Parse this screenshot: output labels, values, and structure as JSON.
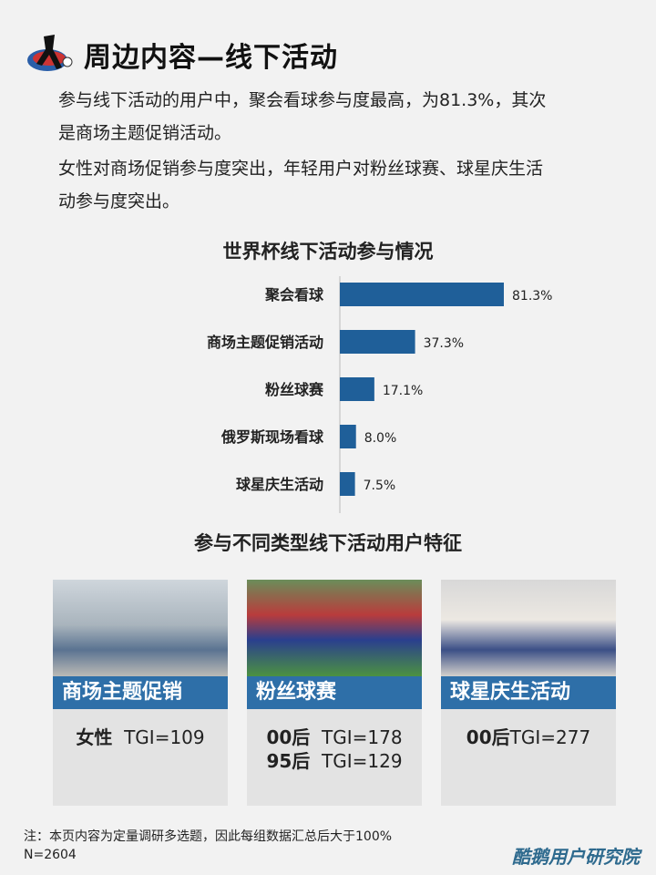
{
  "header": {
    "title": "周边内容—线下活动",
    "icon": "soccer-player-logo-icon"
  },
  "summary": [
    "参与线下活动的用户中，聚会看球参与度最高，为81.3%，其次",
    "是商场主题促销活动。",
    "女性对商场促销参与度突出，年轻用户对粉丝球赛、球星庆生活",
    "动参与度突出。"
  ],
  "chart_data": {
    "type": "bar",
    "orientation": "horizontal",
    "title": "世界杯线下活动参与情况",
    "categories": [
      "聚会看球",
      "商场主题促销活动",
      "粉丝球赛",
      "俄罗斯现场看球",
      "球星庆生活动"
    ],
    "values": [
      81.3,
      37.3,
      17.1,
      8.0,
      7.5
    ],
    "labels": [
      "81.3%",
      "37.3%",
      "17.1%",
      "8.0%",
      "7.5%"
    ],
    "xlim": [
      0,
      100
    ],
    "grid": false,
    "color": "#1f5f99"
  },
  "section_title": "参与不同类型线下活动用户特征",
  "cards": [
    {
      "label": "商场主题促销",
      "rows": [
        {
          "group": "女性",
          "tgi": "TGI=109"
        }
      ]
    },
    {
      "label": "粉丝球赛",
      "rows": [
        {
          "group": "00后",
          "tgi": "TGI=178"
        },
        {
          "group": "95后",
          "tgi": "TGI=129"
        }
      ]
    },
    {
      "label": "球星庆生活动",
      "rows": [
        {
          "group": "00后",
          "tgi": "TGI=277"
        }
      ]
    }
  ],
  "footer": {
    "note": "注：本页内容为定量调研多选题，因此每组数据汇总后大于100%",
    "n": "N=2604",
    "brand": "酷鹅用户研究院"
  }
}
